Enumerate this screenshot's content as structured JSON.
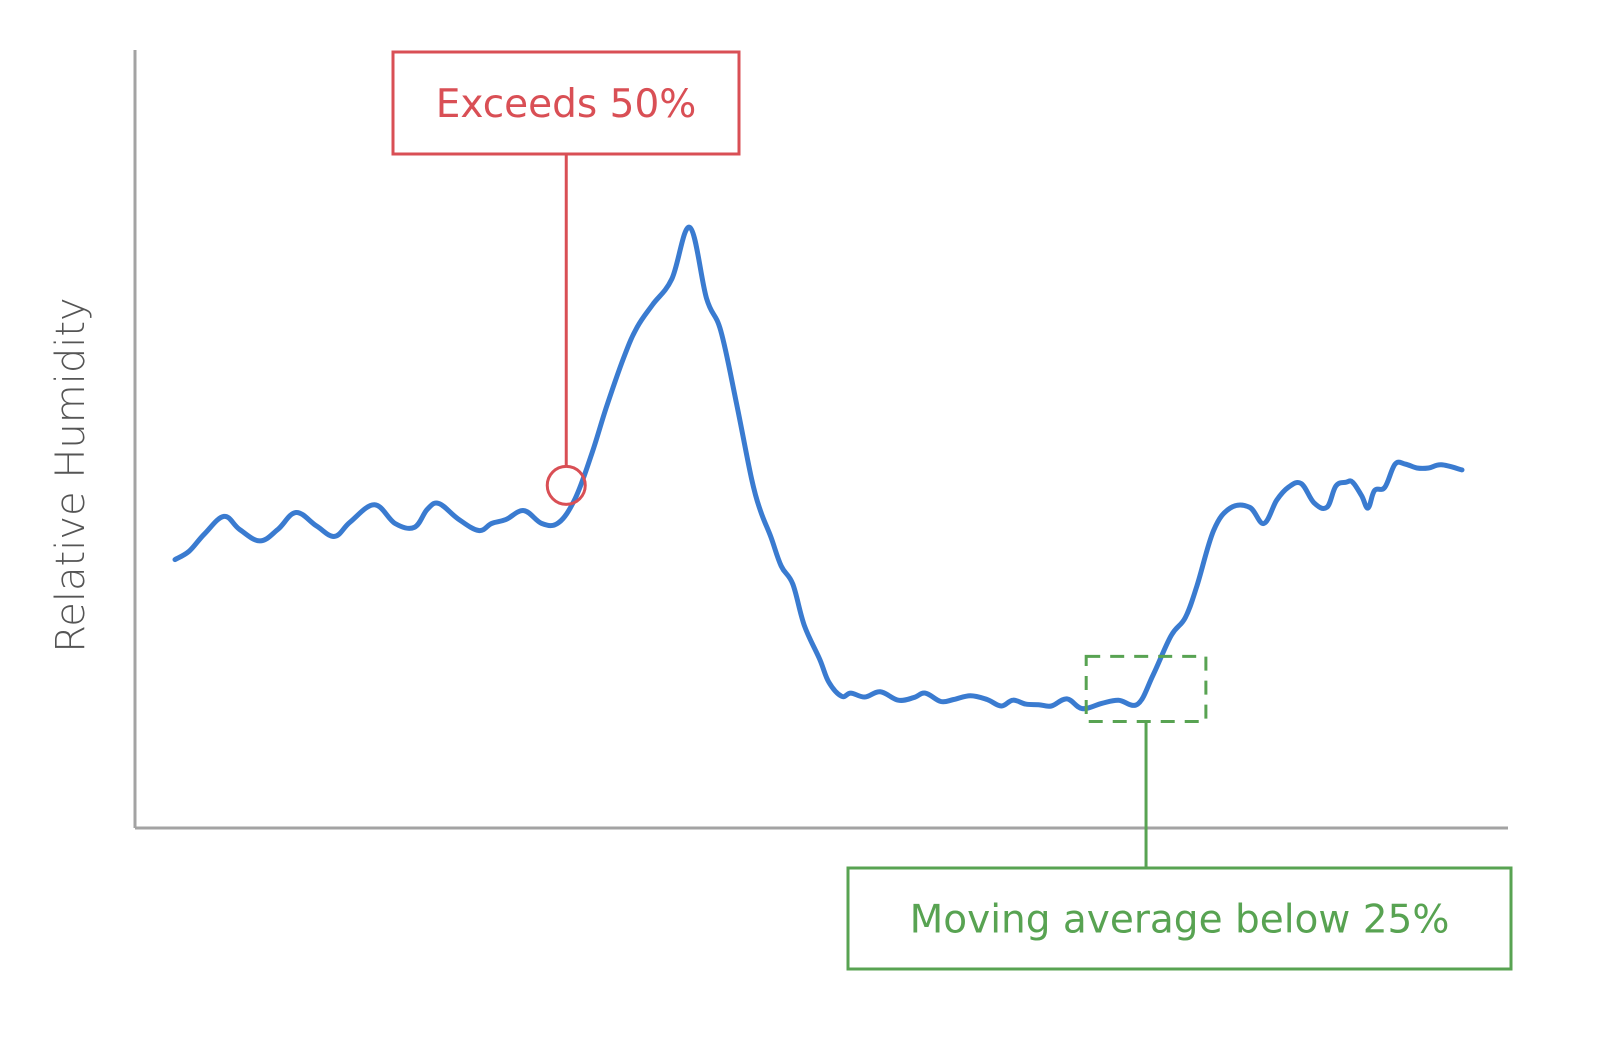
{
  "colors": {
    "series": "#3a7bd0",
    "axis": "#a3a3a3",
    "label_text": "#555555",
    "threshold_callout": "#d94f55",
    "average_callout": "#58a352"
  },
  "chart_data": {
    "type": "line",
    "title": "",
    "xlabel": "",
    "ylabel": "Relative Humidity",
    "x_ticks": false,
    "y_ticks": false,
    "grid": false,
    "ylim": [
      0,
      100
    ],
    "xlim": [
      0,
      100
    ],
    "series": [
      {
        "x": [
          0,
          1.1,
          2.3,
          3.8,
          5.0,
          6.6,
          8.0,
          9.4,
          11.0,
          12.4,
          13.6,
          15.5,
          17.1,
          18.6,
          19.6,
          20.5,
          22.0,
          23.6,
          24.6,
          25.7,
          27.1,
          28.5,
          29.8,
          31.1,
          32.4,
          33.5,
          34.9,
          35.9,
          37.1,
          38.6,
          40.0,
          41.3,
          42.4,
          43.6,
          44.8,
          45.5,
          46.3,
          47.1,
          48.0,
          48.9,
          50.1,
          50.8,
          51.8,
          52.5,
          53.6,
          54.8,
          56.2,
          57.4,
          58.3,
          59.5,
          60.5,
          61.8,
          63.1,
          64.2,
          65.1,
          66.1,
          67.1,
          68.1,
          69.3,
          70.5,
          72.0,
          73.3,
          74.8,
          76.0,
          77.4,
          78.5,
          79.4,
          80.7,
          82.0,
          83.5,
          84.6,
          85.6,
          86.5,
          87.5,
          88.5,
          89.5,
          90.2,
          91.0,
          91.5,
          92.2,
          92.7,
          93.2,
          94.0,
          94.8,
          95.6,
          96.5,
          97.4,
          98.4,
          100.0
        ],
        "values": [
          38.5,
          39.8,
          42.5,
          45.2,
          43.2,
          41.4,
          43.2,
          45.8,
          43.7,
          42.1,
          44.3,
          47.0,
          44.1,
          43.5,
          46.3,
          47.2,
          44.8,
          43.0,
          44.1,
          44.7,
          46.1,
          44.1,
          44.2,
          48.0,
          55.0,
          62.0,
          70.0,
          74.5,
          78.0,
          82.0,
          90.0,
          79.0,
          74.0,
          63.0,
          51.0,
          46.0,
          42.0,
          37.5,
          34.7,
          28.3,
          23.0,
          19.5,
          17.3,
          17.8,
          17.2,
          18.0,
          16.7,
          17.1,
          17.8,
          16.5,
          16.8,
          17.4,
          16.8,
          15.8,
          16.7,
          16.1,
          16.0,
          15.8,
          16.9,
          15.4,
          16.2,
          16.7,
          16.1,
          20.6,
          26.7,
          29.5,
          34.4,
          43.0,
          46.5,
          46.6,
          44.1,
          47.7,
          49.7,
          50.3,
          47.3,
          46.6,
          49.9,
          50.5,
          50.5,
          48.4,
          46.5,
          49.2,
          49.7,
          53.3,
          53.3,
          52.7,
          52.7,
          53.2,
          52.4
        ]
      }
    ],
    "annotations": [
      {
        "text": "Exceeds 50%",
        "kind": "threshold-crossing-marker",
        "x": 30.4,
        "y": 50.0
      },
      {
        "text": "Moving average below 25%",
        "kind": "dashed-region",
        "x_range": [
          70.8,
          80.1
        ],
        "y_range": [
          13.4,
          23.5
        ]
      }
    ]
  }
}
